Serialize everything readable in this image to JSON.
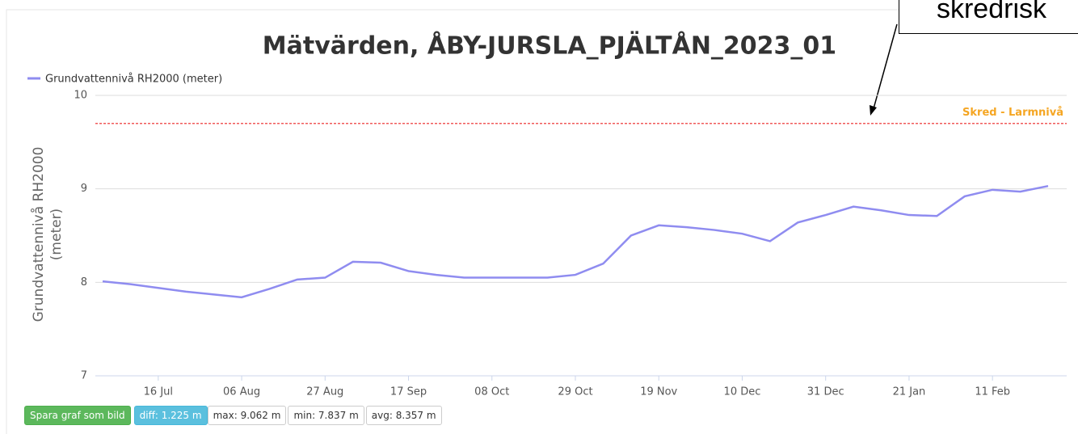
{
  "chart_data": {
    "type": "line",
    "title": "Mätvärden, ÅBY-JURSLA_PJÄLTÅN_2023_01",
    "y_label": [
      "Grundvattennivå RH2000",
      "(meter)"
    ],
    "categories": [
      null,
      null,
      "16 Jul",
      null,
      null,
      "06 Aug",
      null,
      null,
      "27 Aug",
      null,
      null,
      "17 Sep",
      null,
      null,
      "08 Oct",
      null,
      null,
      "29 Oct",
      null,
      null,
      "19 Nov",
      null,
      null,
      "10 Dec",
      null,
      null,
      "31 Dec",
      null,
      null,
      "21 Jan",
      null,
      null,
      "11 Feb",
      null,
      null
    ],
    "series": [
      {
        "name": "Grundvattennivå RH2000 (meter)",
        "color": "#8f8cf0",
        "values": [
          8.01,
          7.98,
          7.94,
          7.9,
          7.87,
          7.84,
          7.93,
          8.03,
          8.05,
          8.22,
          8.21,
          8.12,
          8.08,
          8.05,
          8.05,
          8.05,
          8.05,
          8.08,
          8.2,
          8.5,
          8.61,
          8.59,
          8.56,
          8.52,
          8.44,
          8.64,
          8.72,
          8.81,
          8.77,
          8.72,
          8.71,
          8.92,
          8.99,
          8.97,
          9.03
        ]
      }
    ],
    "ylim": [
      7,
      10
    ],
    "yticks": [
      7,
      8,
      9,
      10
    ],
    "grid": true,
    "threshold": {
      "value": 9.7,
      "label": "Skred - Larmnivå",
      "color": "#f05a5a",
      "label_color": "#f5a623"
    },
    "legend": "top-left"
  },
  "buttons": [
    "Spara graf som bild",
    "diff: 1.225 m",
    "max: 9.062 m",
    "min: 7.837 m",
    "avg: 8.357 m"
  ],
  "callout": "skredrisk"
}
